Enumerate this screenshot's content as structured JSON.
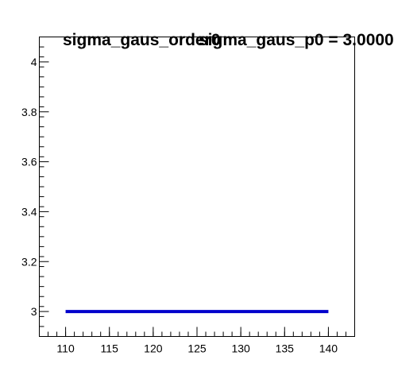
{
  "chart_data": {
    "type": "line",
    "titles": [
      "sigma_gaus_order0",
      "sigma_gaus_p0 = 3.00000"
    ],
    "x": [
      110,
      140
    ],
    "series": [
      {
        "values": [
          3,
          3
        ],
        "color": "#0000cc"
      }
    ],
    "xlim": [
      107,
      143
    ],
    "ylim": [
      2.9,
      4.1
    ],
    "x_ticks": [
      110,
      115,
      120,
      125,
      130,
      135,
      140
    ],
    "x_tick_labels": [
      "110",
      "115",
      "120",
      "125",
      "130",
      "135",
      "140"
    ],
    "y_ticks": [
      3,
      3.2,
      3.4,
      3.6,
      3.8,
      4
    ],
    "y_tick_labels": [
      "3",
      "3.2",
      "3.4",
      "3.6",
      "3.8",
      "4"
    ],
    "x_minor_step": 1,
    "y_minor_step": 0.04,
    "grid": false
  }
}
